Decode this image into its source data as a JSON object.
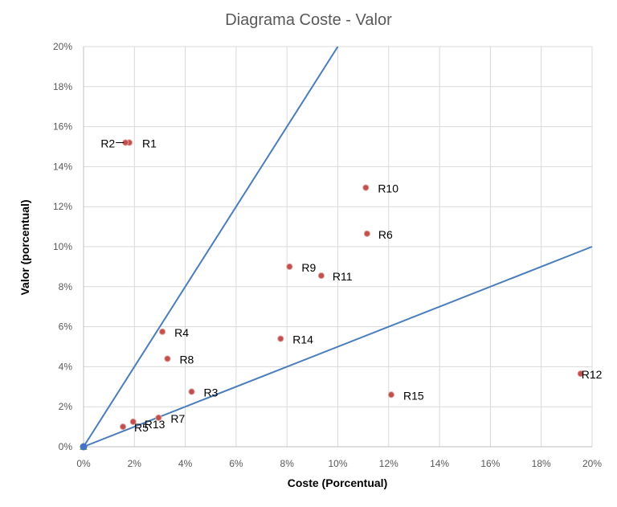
{
  "chart_data": {
    "type": "scatter",
    "title": "Diagrama Coste - Valor",
    "xlabel": "Coste (Porcentual)",
    "ylabel": "Valor (porcentual)",
    "xlim": [
      0,
      20
    ],
    "ylim": [
      0,
      20
    ],
    "x_ticks": [
      "0%",
      "2%",
      "4%",
      "6%",
      "8%",
      "10%",
      "12%",
      "14%",
      "16%",
      "18%",
      "20%"
    ],
    "y_ticks": [
      "0%",
      "2%",
      "4%",
      "6%",
      "8%",
      "10%",
      "12%",
      "14%",
      "16%",
      "18%",
      "20%"
    ],
    "grid": true,
    "points": [
      {
        "label": "R1",
        "x": 1.8,
        "y": 15.2
      },
      {
        "label": "R2",
        "x": 1.65,
        "y": 15.2
      },
      {
        "label": "R3",
        "x": 4.25,
        "y": 2.75
      },
      {
        "label": "R4",
        "x": 3.1,
        "y": 5.75
      },
      {
        "label": "R5",
        "x": 1.55,
        "y": 1.0
      },
      {
        "label": "R6",
        "x": 11.15,
        "y": 10.65
      },
      {
        "label": "R7",
        "x": 2.95,
        "y": 1.45
      },
      {
        "label": "R8",
        "x": 3.3,
        "y": 4.4
      },
      {
        "label": "R9",
        "x": 8.1,
        "y": 9.0
      },
      {
        "label": "R10",
        "x": 11.1,
        "y": 12.95
      },
      {
        "label": "R11",
        "x": 9.35,
        "y": 8.55
      },
      {
        "label": "R12",
        "x": 19.55,
        "y": 3.65
      },
      {
        "label": "R13",
        "x": 1.95,
        "y": 1.25
      },
      {
        "label": "R14",
        "x": 7.75,
        "y": 5.4
      },
      {
        "label": "R15",
        "x": 12.1,
        "y": 2.6
      }
    ],
    "reference_lines": [
      {
        "x": [
          0,
          10
        ],
        "y": [
          0,
          20
        ]
      },
      {
        "x": [
          0,
          20
        ],
        "y": [
          0,
          10
        ]
      }
    ],
    "origin_point": {
      "x": 0,
      "y": 0
    },
    "colors": {
      "point": "#c0504d",
      "line": "#4a7ebb",
      "origin": "#4472c4",
      "origin_marker": "#9bbb59"
    }
  }
}
